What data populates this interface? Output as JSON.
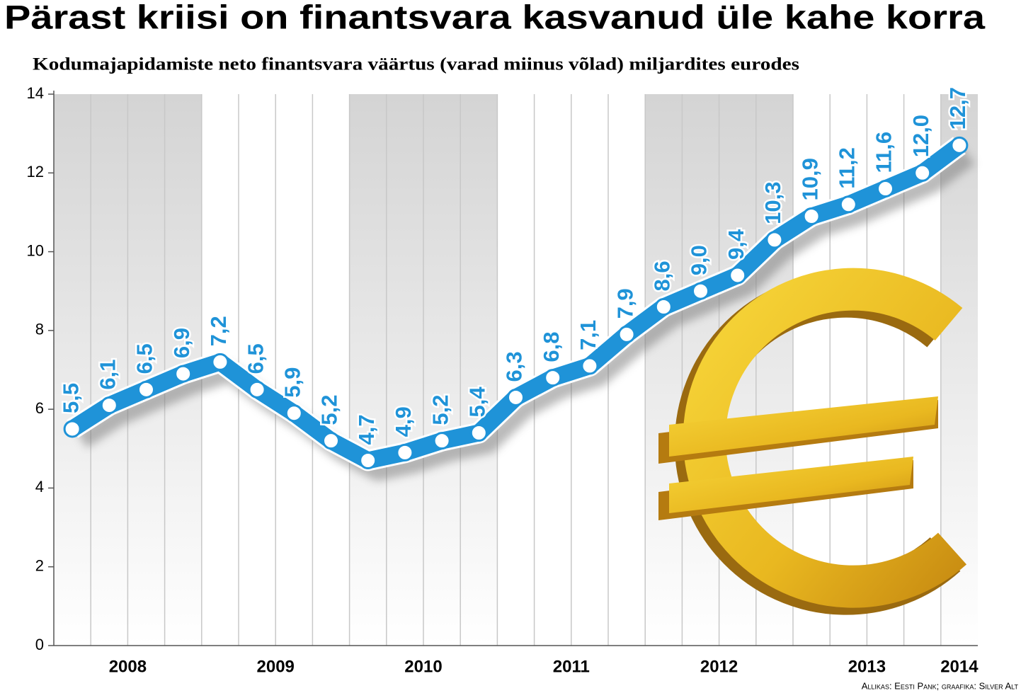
{
  "chart_data": {
    "type": "line",
    "title": "Pärast kriisi on finantsvara kasvanud üle kahe korra",
    "subtitle": "Kodumajapidamiste neto finantsvara väärtus (varad miinus võlad) miljardites eurodes",
    "source": "Allikas: Eesti Pank; graafika: Silver Alt",
    "year_groups": [
      "2008",
      "2009",
      "2010",
      "2011",
      "2012",
      "2013",
      "2014"
    ],
    "values": [
      5.5,
      6.1,
      6.5,
      6.9,
      7.2,
      6.5,
      5.9,
      5.2,
      4.7,
      4.9,
      5.2,
      5.4,
      6.3,
      6.8,
      7.1,
      7.9,
      8.6,
      9.0,
      9.4,
      10.3,
      10.9,
      11.2,
      11.6,
      12.0,
      12.7
    ],
    "value_labels": [
      "5,5",
      "6,1",
      "6,5",
      "6,9",
      "7,2",
      "6,5",
      "5,9",
      "5,2",
      "4,7",
      "4,9",
      "5,2",
      "5,4",
      "6,3",
      "6,8",
      "7,1",
      "7,9",
      "8,6",
      "9,0",
      "9,4",
      "10,3",
      "10,9",
      "11,2",
      "11,6",
      "12,0",
      "12,7"
    ],
    "color": "#1f93d8",
    "ylim": [
      0,
      14
    ],
    "yticks": [
      0,
      2,
      4,
      6,
      8,
      10,
      12,
      14
    ]
  }
}
